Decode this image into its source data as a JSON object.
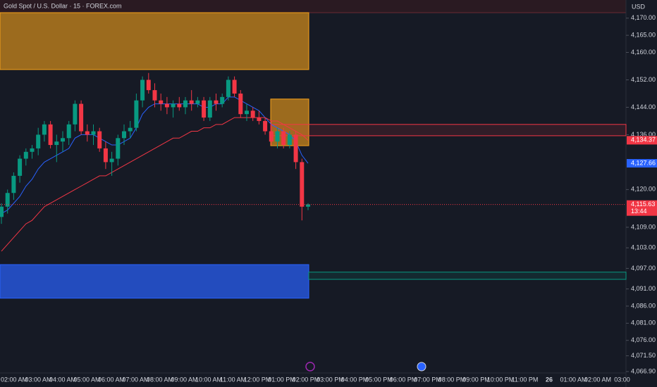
{
  "chart_data": {
    "type": "candlestick",
    "title": "Gold Spot / U.S. Dollar · 15 · FOREX.com",
    "currency": "USD",
    "up_color": "#089981",
    "down_color": "#f23645",
    "open": [
      4112,
      4115,
      4119,
      4124,
      4129,
      4131,
      4132,
      4136,
      4139,
      4133,
      4134,
      4135,
      4139,
      4145,
      4137,
      4136,
      4137,
      4132,
      4128,
      4129,
      4135,
      4137,
      4138,
      4146,
      4152,
      4149,
      4146,
      4145,
      4144,
      4145,
      4144,
      4146,
      4145,
      4146,
      4141,
      4146,
      4145,
      4147,
      4152,
      4148,
      4142,
      4143,
      4141,
      4140,
      4137,
      4134,
      4137,
      4133,
      4136,
      4128,
      4115
    ],
    "high": [
      4116,
      4120,
      4125,
      4130,
      4132,
      4133,
      4138,
      4140,
      4140,
      4136,
      4137,
      4140,
      4146,
      4146,
      4139,
      4139,
      4138,
      4134,
      4131,
      4136,
      4139,
      4140,
      4148,
      4153,
      4154,
      4151,
      4148,
      4147,
      4146,
      4147,
      4147,
      4149,
      4147,
      4147,
      4147,
      4148,
      4148,
      4153,
      4153,
      4149,
      4145,
      4144,
      4143,
      4141,
      4140,
      4138,
      4138,
      4137,
      4137,
      4129,
      4116
    ],
    "low": [
      4110,
      4113,
      4117,
      4122,
      4127,
      4129,
      4130,
      4134,
      4132,
      4128,
      4131,
      4133,
      4137,
      4136,
      4134,
      4133,
      4131,
      4126,
      4124,
      4127,
      4133,
      4135,
      4137,
      4144,
      4148,
      4144,
      4143,
      4142,
      4141,
      4143,
      4142,
      4143,
      4144,
      4140,
      4140,
      4143,
      4144,
      4146,
      4147,
      4141,
      4140,
      4140,
      4139,
      4136,
      4133,
      4132,
      4132,
      4132,
      4126,
      4111,
      4114
    ],
    "close": [
      4115,
      4119,
      4124,
      4129,
      4131,
      4132,
      4136,
      4139,
      4133,
      4134,
      4135,
      4139,
      4145,
      4137,
      4136,
      4137,
      4132,
      4128,
      4129,
      4135,
      4137,
      4138,
      4146,
      4152,
      4149,
      4146,
      4145,
      4144,
      4145,
      4144,
      4146,
      4145,
      4146,
      4141,
      4146,
      4145,
      4147,
      4152,
      4148,
      4142,
      4143,
      4141,
      4140,
      4137,
      4134,
      4137,
      4133,
      4136,
      4128,
      4115,
      4115.63
    ],
    "moving_averages": [
      {
        "color": "#2962ff",
        "values": [
          4113,
          4114,
          4116,
          4118,
          4121,
          4123,
          4126,
          4128,
          4129,
          4130,
          4131,
          4132,
          4135,
          4136,
          4136,
          4136,
          4135,
          4134,
          4133,
          4133,
          4134,
          4135,
          4138,
          4142,
          4144,
          4145,
          4145,
          4145,
          4145,
          4145,
          4145,
          4145,
          4145,
          4144,
          4144,
          4145,
          4145,
          4147,
          4147,
          4146,
          4145,
          4144,
          4143,
          4141,
          4139,
          4138,
          4137,
          4136,
          4134,
          4130,
          4127.66
        ]
      },
      {
        "color": "#f23645",
        "values": [
          4102,
          4104,
          4106,
          4108,
          4110,
          4111,
          4113,
          4115,
          4116,
          4117,
          4118,
          4119,
          4120,
          4121,
          4122,
          4123,
          4124,
          4124,
          4125,
          4126,
          4127,
          4128,
          4129,
          4130,
          4131,
          4132,
          4133,
          4134,
          4135,
          4135,
          4136,
          4137,
          4137,
          4138,
          4138,
          4139,
          4139,
          4140,
          4141,
          4141,
          4141,
          4141,
          4141,
          4141,
          4140,
          4140,
          4139,
          4138,
          4137,
          4136,
          4134.37
        ]
      }
    ],
    "zones": [
      {
        "low": 4155,
        "high": 4171.6,
        "color": "#f7a21b"
      },
      {
        "low": 4132.8,
        "high": 4146.4,
        "color": "#f7a21b"
      },
      {
        "low": 4088.3,
        "high": 4098.1,
        "color": "#2962ff"
      },
      {
        "low": 4135.7,
        "high": 4139,
        "color": "#f23645"
      },
      {
        "low": 4093.8,
        "high": 4095.9,
        "color": "#089981"
      }
    ],
    "ylim": [
      4066.5,
      4171.6
    ],
    "yticks": [
      {
        "value": 4170,
        "label": "4,170.00"
      },
      {
        "value": 4165,
        "label": "4,165.00"
      },
      {
        "value": 4160,
        "label": "4,160.00"
      },
      {
        "value": 4152,
        "label": "4,152.00"
      },
      {
        "value": 4144,
        "label": "4,144.00"
      },
      {
        "value": 4136,
        "label": "4,136.00"
      },
      {
        "value": 4120,
        "label": "4,120.00"
      },
      {
        "value": 4109,
        "label": "4,109.00"
      },
      {
        "value": 4103,
        "label": "4,103.00"
      },
      {
        "value": 4097,
        "label": "4,097.00"
      },
      {
        "value": 4091,
        "label": "4,091.00"
      },
      {
        "value": 4086,
        "label": "4,086.00"
      },
      {
        "value": 4081,
        "label": "4,081.00"
      },
      {
        "value": 4076,
        "label": "4,076.00"
      },
      {
        "value": 4071.5,
        "label": "4,071.50"
      },
      {
        "value": 4066.9,
        "label": "4,066.90"
      }
    ],
    "price_labels": [
      {
        "value": 4134.37,
        "label": "4,134.37",
        "color": "#f23645"
      },
      {
        "value": 4127.66,
        "label": "4,127.66",
        "color": "#2962ff"
      },
      {
        "value": 4115.63,
        "label": "4,115.63",
        "color": "#f23645",
        "countdown": "13:44"
      }
    ],
    "xticks": [
      "02:00 AM",
      "03:00 AM",
      "04:00 AM",
      "05:00 AM",
      "06:00 AM",
      "07:00 AM",
      "08:00 AM",
      "09:00 AM",
      "10:00 AM",
      "11:00 AM",
      "12:00 PM",
      "01:00 PM",
      "02:00 PM",
      "03:00 PM",
      "04:00 PM",
      "05:00 PM",
      "06:00 PM",
      "07:00 PM",
      "08:00 PM",
      "09:00 PM",
      "10:00 PM",
      "11:00 PM",
      "26",
      "01:00 AM",
      "02:00 AM",
      "03:00"
    ]
  }
}
